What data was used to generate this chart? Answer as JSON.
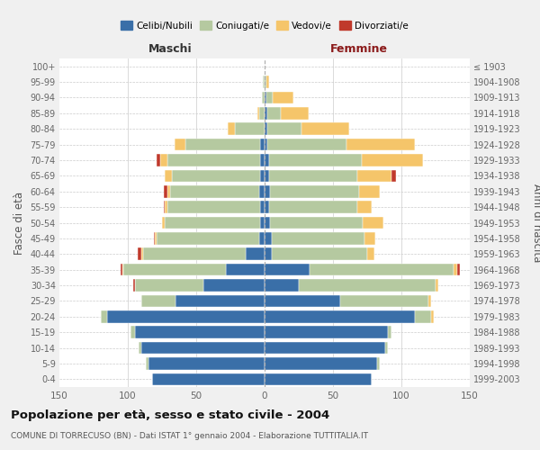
{
  "age_groups": [
    "0-4",
    "5-9",
    "10-14",
    "15-19",
    "20-24",
    "25-29",
    "30-34",
    "35-39",
    "40-44",
    "45-49",
    "50-54",
    "55-59",
    "60-64",
    "65-69",
    "70-74",
    "75-79",
    "80-84",
    "85-89",
    "90-94",
    "95-99",
    "100+"
  ],
  "birth_years": [
    "1999-2003",
    "1994-1998",
    "1989-1993",
    "1984-1988",
    "1979-1983",
    "1974-1978",
    "1969-1973",
    "1964-1968",
    "1959-1963",
    "1954-1958",
    "1949-1953",
    "1944-1948",
    "1939-1943",
    "1934-1938",
    "1929-1933",
    "1924-1928",
    "1919-1923",
    "1914-1918",
    "1909-1913",
    "1904-1908",
    "≤ 1903"
  ],
  "male": {
    "celibe": [
      82,
      85,
      90,
      95,
      115,
      65,
      45,
      28,
      14,
      4,
      3,
      3,
      4,
      3,
      3,
      3,
      0,
      0,
      0,
      0,
      0
    ],
    "coniugato": [
      0,
      2,
      2,
      3,
      5,
      25,
      50,
      75,
      75,
      75,
      70,
      68,
      65,
      65,
      68,
      55,
      22,
      4,
      2,
      1,
      0
    ],
    "vedovo": [
      0,
      0,
      0,
      0,
      0,
      0,
      0,
      1,
      1,
      1,
      2,
      2,
      2,
      5,
      5,
      8,
      5,
      1,
      0,
      0,
      0
    ],
    "divorziato": [
      0,
      0,
      0,
      0,
      0,
      0,
      1,
      1,
      3,
      1,
      0,
      1,
      3,
      0,
      3,
      0,
      0,
      0,
      0,
      0,
      0
    ]
  },
  "female": {
    "nubile": [
      78,
      82,
      88,
      90,
      110,
      55,
      25,
      33,
      5,
      5,
      4,
      3,
      4,
      3,
      3,
      2,
      2,
      2,
      1,
      0,
      0
    ],
    "coniugata": [
      0,
      2,
      2,
      3,
      12,
      65,
      100,
      105,
      70,
      68,
      68,
      65,
      65,
      65,
      68,
      58,
      25,
      10,
      5,
      1,
      0
    ],
    "vedova": [
      0,
      0,
      0,
      0,
      2,
      2,
      2,
      3,
      5,
      8,
      15,
      10,
      15,
      25,
      45,
      50,
      35,
      20,
      15,
      2,
      0
    ],
    "divorziata": [
      0,
      0,
      0,
      0,
      0,
      0,
      0,
      2,
      0,
      0,
      0,
      0,
      0,
      3,
      0,
      0,
      0,
      0,
      0,
      0,
      0
    ]
  },
  "colors": {
    "celibe": "#3a6fa8",
    "coniugato": "#b5c9a0",
    "vedovo": "#f5c56a",
    "divorziato": "#c0392b"
  },
  "xlim": 150,
  "title": "Popolazione per età, sesso e stato civile - 2004",
  "subtitle": "COMUNE DI TORRECUSO (BN) - Dati ISTAT 1° gennaio 2004 - Elaborazione TUTTITALIA.IT",
  "ylabel_left": "Fasce di età",
  "ylabel_right": "Anni di nascita",
  "label_maschi": "Maschi",
  "label_femmine": "Femmine",
  "legend_labels": [
    "Celibi/Nubili",
    "Coniugati/e",
    "Vedovi/e",
    "Divorziati/e"
  ],
  "bg_color": "#f0f0f0",
  "plot_bg_color": "#ffffff"
}
